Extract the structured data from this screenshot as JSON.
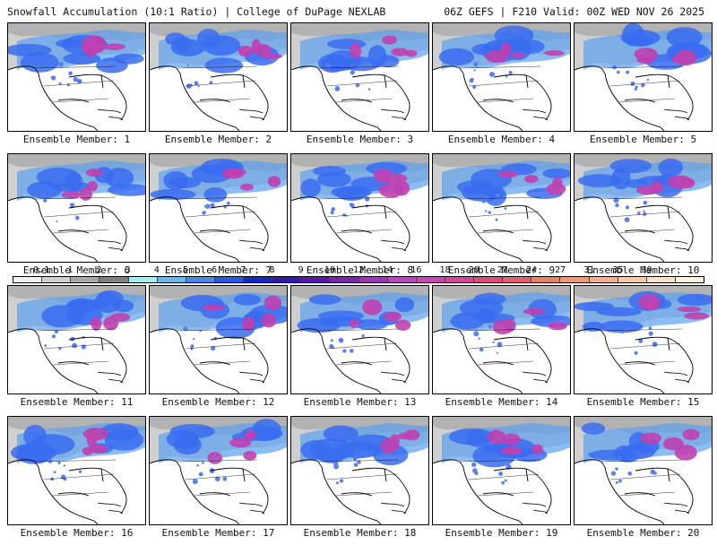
{
  "header": {
    "left": "Snowfall Accumulation (10:1 Ratio) | College of DuPage NEXLAB",
    "right": "06Z GEFS | F210 Valid: 00Z WED NOV 26 2025"
  },
  "panels": [
    {
      "label": "Ensemble Member: 1"
    },
    {
      "label": "Ensemble Member: 2"
    },
    {
      "label": "Ensemble Member: 3"
    },
    {
      "label": "Ensemble Member: 4"
    },
    {
      "label": "Ensemble Member: 5"
    },
    {
      "label": "Ensemble Member: 6"
    },
    {
      "label": "Ensemble Member: 7"
    },
    {
      "label": "Ensemble Member: 8"
    },
    {
      "label": "Ensemble Member: 9"
    },
    {
      "label": "Ensemble Member: 10"
    },
    {
      "label": "Ensemble Member: 11"
    },
    {
      "label": "Ensemble Member: 12"
    },
    {
      "label": "Ensemble Member: 13"
    },
    {
      "label": "Ensemble Member: 14"
    },
    {
      "label": "Ensemble Member: 15"
    },
    {
      "label": "Ensemble Member: 16"
    },
    {
      "label": "Ensemble Member: 17"
    },
    {
      "label": "Ensemble Member: 18"
    },
    {
      "label": "Ensemble Member: 19"
    },
    {
      "label": "Ensemble Member: 20"
    }
  ],
  "colorbar": {
    "labels": [
      "0.1",
      "1",
      "2",
      "3",
      "4",
      "5",
      "6",
      "7",
      "8",
      "9",
      "10",
      "12",
      "14",
      "16",
      "18",
      "20",
      "22",
      "24",
      "27",
      "31",
      "35",
      "39"
    ],
    "colors": [
      "#f0f0f0",
      "#d0d0d0",
      "#a8a8a8",
      "#808080",
      "#a0f0f0",
      "#6ab8f0",
      "#4a88f0",
      "#2a58e0",
      "#1828c0",
      "#3818a8",
      "#5818a8",
      "#7828b0",
      "#9838b8",
      "#b848c0",
      "#c848b0",
      "#d04898",
      "#d85080",
      "#e06070",
      "#e88068",
      "#f09878",
      "#f4b090",
      "#f8c8a8",
      "#fce0c8",
      "#fff0e0"
    ]
  }
}
